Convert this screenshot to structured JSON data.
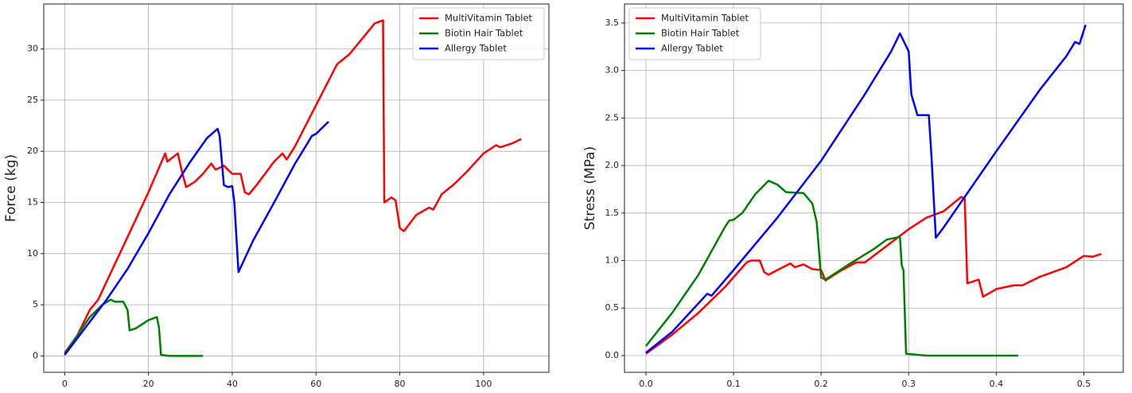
{
  "chart_data": [
    {
      "type": "line",
      "y_label": "Force (kg)",
      "legend": "upper right",
      "grid": true,
      "xlim": [
        -5,
        115.6
      ],
      "ylim": [
        -1.6,
        34.4
      ],
      "xticks": [
        0,
        20,
        40,
        60,
        80,
        100
      ],
      "yticks": [
        0,
        5,
        10,
        15,
        20,
        25,
        30
      ],
      "series": [
        {
          "name": "MultiVitamin Tablet",
          "color": "#ff0000",
          "x": [
            0,
            3,
            6,
            8,
            12,
            16,
            20,
            24,
            24.5,
            27,
            28,
            29,
            31,
            33,
            35,
            36,
            38,
            40,
            42,
            43,
            44,
            46,
            50,
            52,
            53,
            55,
            60,
            65,
            68,
            70,
            74,
            76,
            76.3,
            78,
            79,
            80,
            81,
            84,
            87,
            88,
            90,
            93,
            96,
            100,
            103,
            104,
            107,
            109
          ],
          "values": [
            0.3,
            2,
            4.5,
            5.5,
            9,
            12.5,
            16,
            19.8,
            19,
            19.8,
            18,
            16.5,
            17,
            17.8,
            18.8,
            18.2,
            18.6,
            17.8,
            17.8,
            16,
            15.8,
            16.8,
            19,
            19.8,
            19.2,
            20.5,
            24.5,
            28.5,
            29.5,
            30.5,
            32.5,
            32.8,
            15,
            15.5,
            15.2,
            12.5,
            12.2,
            13.8,
            14.5,
            14.3,
            15.8,
            16.8,
            18,
            19.8,
            20.6,
            20.4,
            20.8,
            21.2
          ]
        },
        {
          "name": "Biotin Hair Tablet",
          "color": "#008000",
          "x": [
            0,
            3,
            6,
            9,
            11,
            12,
            14,
            15,
            15.5,
            17,
            20,
            22,
            22.5,
            23,
            25,
            33
          ],
          "values": [
            0.2,
            2,
            3.8,
            5,
            5.5,
            5.3,
            5.3,
            4.5,
            2.5,
            2.7,
            3.5,
            3.8,
            2.8,
            0.1,
            0,
            0
          ]
        },
        {
          "name": "Allergy Tablet",
          "color": "#0000ff",
          "x": [
            0,
            5,
            10,
            15,
            20,
            25,
            30,
            34,
            36.5,
            37,
            38,
            39,
            40,
            40.5,
            41.5,
            45,
            50,
            55,
            58,
            59,
            60,
            63
          ],
          "values": [
            0.1,
            2.8,
            5.5,
            8.5,
            12,
            15.8,
            19,
            21.3,
            22.2,
            21.5,
            16.7,
            16.5,
            16.6,
            15,
            8.2,
            11.3,
            15,
            18.8,
            20.8,
            21.5,
            21.7,
            22.9
          ]
        }
      ]
    },
    {
      "type": "line",
      "y_label": "Stress (MPa)",
      "legend": "upper left",
      "grid": true,
      "xlim": [
        -0.0245,
        0.545
      ],
      "ylim": [
        -0.176,
        3.7
      ],
      "xticks": [
        {
          "value": 0,
          "label": "0.0"
        },
        0.1,
        0.2,
        0.3,
        0.4,
        0.5
      ],
      "yticks": [
        {
          "value": 0,
          "label": "0.0"
        },
        0.5,
        {
          "value": 1,
          "label": "1.0"
        },
        1.5,
        {
          "value": 2,
          "label": "2.0"
        },
        2.5,
        {
          "value": 3,
          "label": "3.0"
        },
        3.5
      ],
      "series": [
        {
          "name": "MultiVitamin Tablet",
          "color": "#ff0000",
          "x": [
            0,
            0.03,
            0.06,
            0.09,
            0.115,
            0.12,
            0.13,
            0.135,
            0.14,
            0.15,
            0.165,
            0.17,
            0.18,
            0.19,
            0.2,
            0.205,
            0.22,
            0.24,
            0.25,
            0.27,
            0.3,
            0.32,
            0.34,
            0.36,
            0.364,
            0.367,
            0.38,
            0.385,
            0.4,
            0.42,
            0.43,
            0.45,
            0.48,
            0.5,
            0.51,
            0.52
          ],
          "values": [
            0.02,
            0.22,
            0.45,
            0.72,
            0.98,
            1,
            1,
            0.88,
            0.85,
            0.9,
            0.97,
            0.93,
            0.96,
            0.91,
            0.9,
            0.79,
            0.88,
            0.98,
            0.98,
            1.12,
            1.33,
            1.45,
            1.52,
            1.67,
            1.65,
            0.76,
            0.8,
            0.62,
            0.7,
            0.74,
            0.74,
            0.83,
            0.93,
            1.05,
            1.04,
            1.07
          ]
        },
        {
          "name": "Biotin Hair Tablet",
          "color": "#008000",
          "x": [
            0,
            0.03,
            0.06,
            0.09,
            0.095,
            0.1,
            0.11,
            0.125,
            0.14,
            0.15,
            0.16,
            0.18,
            0.19,
            0.195,
            0.2,
            0.205,
            0.23,
            0.26,
            0.275,
            0.29,
            0.292,
            0.294,
            0.297,
            0.32,
            0.425
          ],
          "values": [
            0.1,
            0.45,
            0.85,
            1.35,
            1.42,
            1.43,
            1.5,
            1.7,
            1.84,
            1.8,
            1.72,
            1.71,
            1.6,
            1.4,
            0.82,
            0.8,
            0.95,
            1.12,
            1.22,
            1.25,
            0.95,
            0.9,
            0.02,
            0,
            0
          ]
        },
        {
          "name": "Allergy Tablet",
          "color": "#0000ff",
          "x": [
            0,
            0.03,
            0.07,
            0.075,
            0.1,
            0.15,
            0.2,
            0.25,
            0.28,
            0.29,
            0.3,
            0.303,
            0.31,
            0.323,
            0.326,
            0.331,
            0.34,
            0.4,
            0.45,
            0.48,
            0.49,
            0.495,
            0.502
          ],
          "values": [
            0.03,
            0.25,
            0.65,
            0.63,
            0.9,
            1.45,
            2.05,
            2.75,
            3.2,
            3.39,
            3.2,
            2.75,
            2.53,
            2.53,
            2.1,
            1.24,
            1.35,
            2.15,
            2.8,
            3.15,
            3.3,
            3.28,
            3.48
          ]
        }
      ]
    }
  ]
}
